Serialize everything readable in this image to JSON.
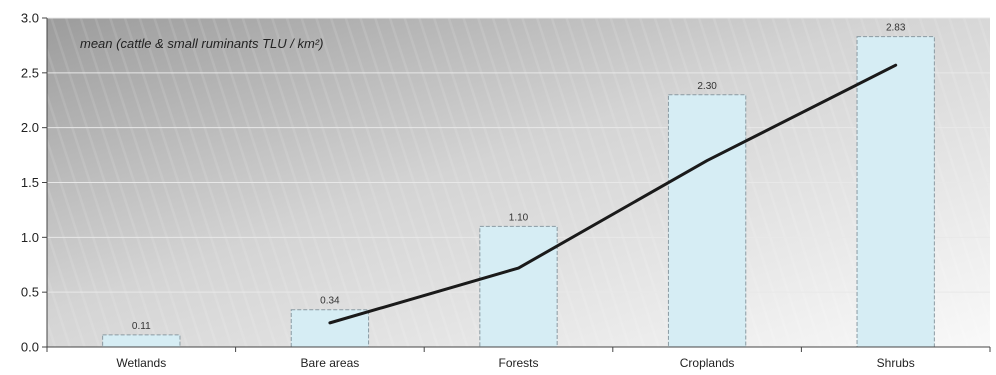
{
  "chart_data": {
    "type": "bar",
    "title": "",
    "annotation": "mean (cattle & small ruminants TLU / km²)",
    "xlabel": "",
    "ylabel": "",
    "categories": [
      "Wetlands",
      "Bare areas",
      "Forests",
      "Croplands",
      "Shrubs"
    ],
    "values": [
      0.11,
      0.34,
      1.1,
      2.3,
      2.83
    ],
    "data_labels": [
      "0.11",
      "0.34",
      "1.10",
      "2.30",
      "2.83"
    ],
    "trend_line": {
      "type": "line",
      "categories": [
        "Bare areas",
        "Forests",
        "Croplands",
        "Shrubs"
      ],
      "values": [
        0.22,
        0.72,
        1.7,
        2.57
      ]
    },
    "ylim": [
      0,
      3.0
    ],
    "yticks": [
      "0.0",
      "0.5",
      "1.0",
      "1.5",
      "2.0",
      "2.5",
      "3.0"
    ],
    "grid": true,
    "legend": "none",
    "colors": {
      "bar_fill": "#d6edf4",
      "bar_stroke": "#8a9aa2",
      "line": "#1a1a1a",
      "grid": "#e8e8e8",
      "background_dark": "#9e9e9e",
      "background_light": "#f7f7f7"
    }
  }
}
